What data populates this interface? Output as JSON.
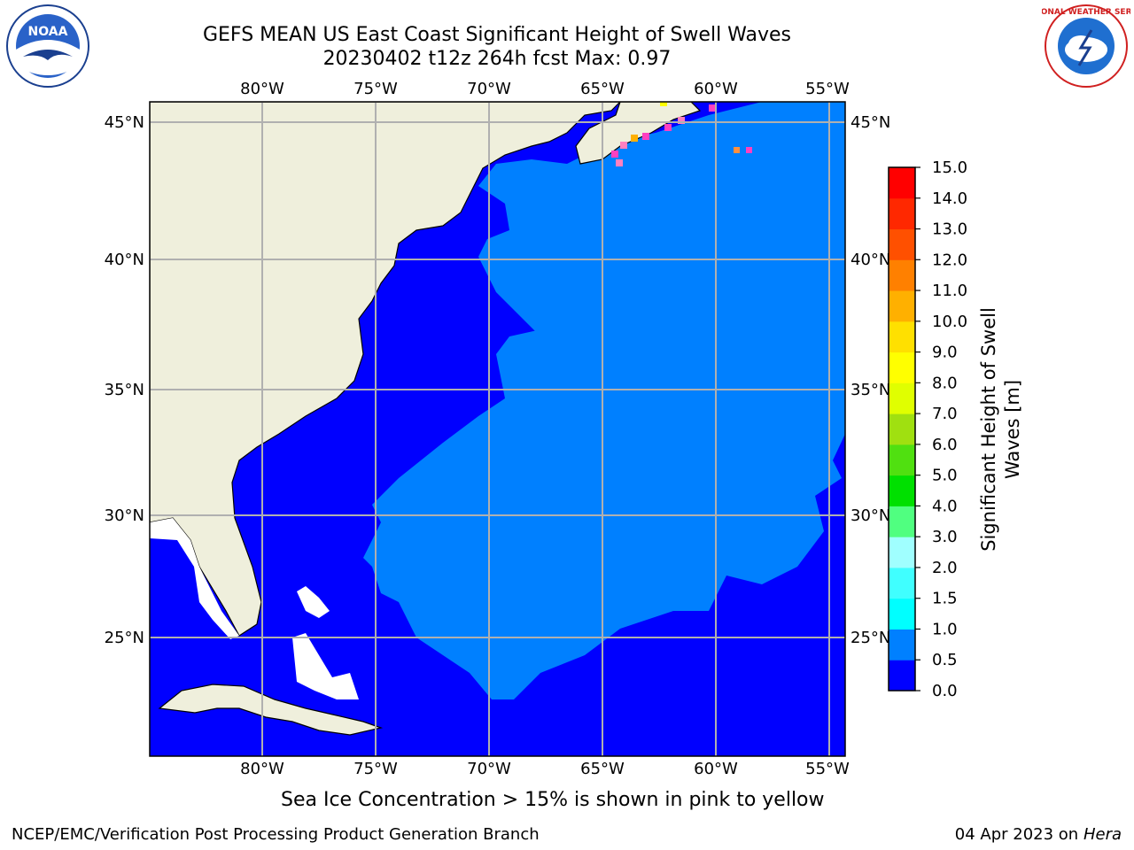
{
  "header": {
    "title": "GEFS MEAN US East Coast Significant Height of Swell Waves",
    "subtitle": "20230402 t12z 264h fcst   Max: 0.97",
    "left_logo": {
      "text": "NOAA",
      "icon": "noaa-logo"
    },
    "right_logo": {
      "text": "NATIONAL WEATHER SERVICE",
      "icon": "nws-logo"
    }
  },
  "map": {
    "lon_labels": [
      "80°W",
      "75°W",
      "70°W",
      "65°W",
      "60°W",
      "55°W"
    ],
    "lat_labels": [
      "45°N",
      "40°N",
      "35°N",
      "30°N",
      "25°N"
    ],
    "colors": {
      "ocean_low": "#0000ff",
      "ocean_mid": "#0080ff",
      "land": "#efefdc",
      "grid": "#b0b0b0"
    }
  },
  "colorbar": {
    "label_line1": "Significant Height of Swell",
    "label_line2": "Waves [m]",
    "ticks": [
      "0.0",
      "0.5",
      "1.0",
      "1.5",
      "2.0",
      "3.0",
      "4.0",
      "5.0",
      "6.0",
      "7.0",
      "8.0",
      "9.0",
      "10.0",
      "11.0",
      "12.0",
      "13.0",
      "14.0",
      "15.0"
    ],
    "colors": [
      "#0000ff",
      "#0080ff",
      "#00ffff",
      "#40ffff",
      "#a0ffff",
      "#50ff80",
      "#00e000",
      "#50e010",
      "#a0e010",
      "#e0ff00",
      "#ffff00",
      "#ffe000",
      "#ffb000",
      "#ff8000",
      "#ff5000",
      "#ff2800",
      "#ff0000"
    ]
  },
  "caption": "Sea Ice Concentration > 15% is shown in pink to yellow",
  "footer": {
    "left": "NCEP/EMC/Verification Post Processing Product Generation Branch",
    "date": "04 Apr 2023 on",
    "machine": "Hera"
  }
}
